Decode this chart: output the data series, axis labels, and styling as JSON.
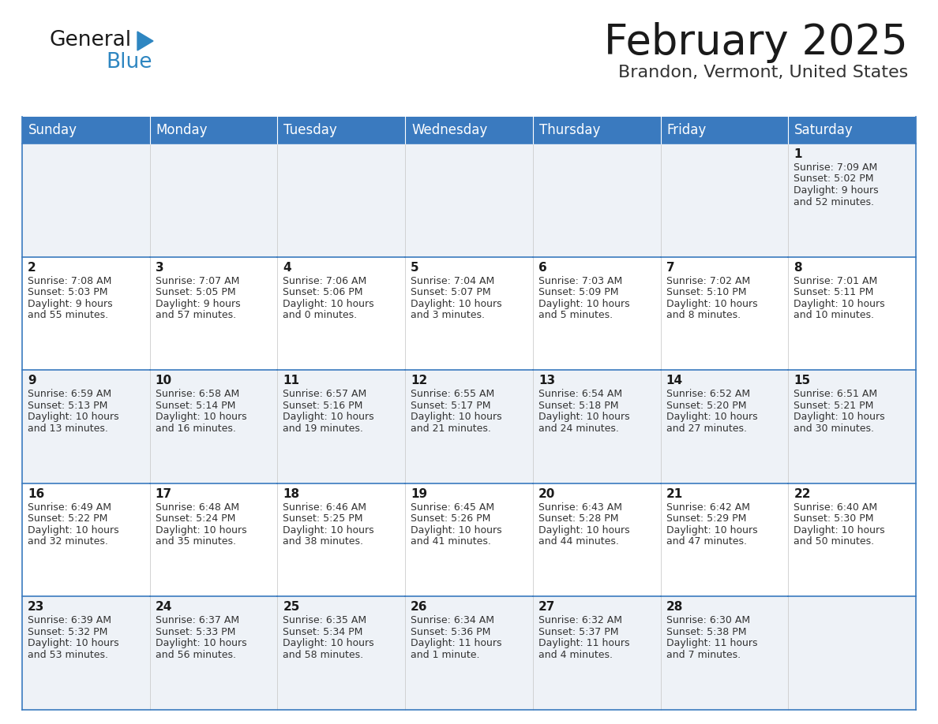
{
  "title": "February 2025",
  "subtitle": "Brandon, Vermont, United States",
  "header_color": "#3a7abf",
  "header_text_color": "#ffffff",
  "cell_bg_even": "#eef2f7",
  "cell_bg_odd": "#ffffff",
  "border_color": "#3a7abf",
  "border_light": "#cccccc",
  "days_of_week": [
    "Sunday",
    "Monday",
    "Tuesday",
    "Wednesday",
    "Thursday",
    "Friday",
    "Saturday"
  ],
  "calendar": [
    [
      null,
      null,
      null,
      null,
      null,
      null,
      {
        "day": "1",
        "sunrise": "7:09 AM",
        "sunset": "5:02 PM",
        "daylight1": "9 hours",
        "daylight2": "and 52 minutes."
      }
    ],
    [
      {
        "day": "2",
        "sunrise": "7:08 AM",
        "sunset": "5:03 PM",
        "daylight1": "9 hours",
        "daylight2": "and 55 minutes."
      },
      {
        "day": "3",
        "sunrise": "7:07 AM",
        "sunset": "5:05 PM",
        "daylight1": "9 hours",
        "daylight2": "and 57 minutes."
      },
      {
        "day": "4",
        "sunrise": "7:06 AM",
        "sunset": "5:06 PM",
        "daylight1": "10 hours",
        "daylight2": "and 0 minutes."
      },
      {
        "day": "5",
        "sunrise": "7:04 AM",
        "sunset": "5:07 PM",
        "daylight1": "10 hours",
        "daylight2": "and 3 minutes."
      },
      {
        "day": "6",
        "sunrise": "7:03 AM",
        "sunset": "5:09 PM",
        "daylight1": "10 hours",
        "daylight2": "and 5 minutes."
      },
      {
        "day": "7",
        "sunrise": "7:02 AM",
        "sunset": "5:10 PM",
        "daylight1": "10 hours",
        "daylight2": "and 8 minutes."
      },
      {
        "day": "8",
        "sunrise": "7:01 AM",
        "sunset": "5:11 PM",
        "daylight1": "10 hours",
        "daylight2": "and 10 minutes."
      }
    ],
    [
      {
        "day": "9",
        "sunrise": "6:59 AM",
        "sunset": "5:13 PM",
        "daylight1": "10 hours",
        "daylight2": "and 13 minutes."
      },
      {
        "day": "10",
        "sunrise": "6:58 AM",
        "sunset": "5:14 PM",
        "daylight1": "10 hours",
        "daylight2": "and 16 minutes."
      },
      {
        "day": "11",
        "sunrise": "6:57 AM",
        "sunset": "5:16 PM",
        "daylight1": "10 hours",
        "daylight2": "and 19 minutes."
      },
      {
        "day": "12",
        "sunrise": "6:55 AM",
        "sunset": "5:17 PM",
        "daylight1": "10 hours",
        "daylight2": "and 21 minutes."
      },
      {
        "day": "13",
        "sunrise": "6:54 AM",
        "sunset": "5:18 PM",
        "daylight1": "10 hours",
        "daylight2": "and 24 minutes."
      },
      {
        "day": "14",
        "sunrise": "6:52 AM",
        "sunset": "5:20 PM",
        "daylight1": "10 hours",
        "daylight2": "and 27 minutes."
      },
      {
        "day": "15",
        "sunrise": "6:51 AM",
        "sunset": "5:21 PM",
        "daylight1": "10 hours",
        "daylight2": "and 30 minutes."
      }
    ],
    [
      {
        "day": "16",
        "sunrise": "6:49 AM",
        "sunset": "5:22 PM",
        "daylight1": "10 hours",
        "daylight2": "and 32 minutes."
      },
      {
        "day": "17",
        "sunrise": "6:48 AM",
        "sunset": "5:24 PM",
        "daylight1": "10 hours",
        "daylight2": "and 35 minutes."
      },
      {
        "day": "18",
        "sunrise": "6:46 AM",
        "sunset": "5:25 PM",
        "daylight1": "10 hours",
        "daylight2": "and 38 minutes."
      },
      {
        "day": "19",
        "sunrise": "6:45 AM",
        "sunset": "5:26 PM",
        "daylight1": "10 hours",
        "daylight2": "and 41 minutes."
      },
      {
        "day": "20",
        "sunrise": "6:43 AM",
        "sunset": "5:28 PM",
        "daylight1": "10 hours",
        "daylight2": "and 44 minutes."
      },
      {
        "day": "21",
        "sunrise": "6:42 AM",
        "sunset": "5:29 PM",
        "daylight1": "10 hours",
        "daylight2": "and 47 minutes."
      },
      {
        "day": "22",
        "sunrise": "6:40 AM",
        "sunset": "5:30 PM",
        "daylight1": "10 hours",
        "daylight2": "and 50 minutes."
      }
    ],
    [
      {
        "day": "23",
        "sunrise": "6:39 AM",
        "sunset": "5:32 PM",
        "daylight1": "10 hours",
        "daylight2": "and 53 minutes."
      },
      {
        "day": "24",
        "sunrise": "6:37 AM",
        "sunset": "5:33 PM",
        "daylight1": "10 hours",
        "daylight2": "and 56 minutes."
      },
      {
        "day": "25",
        "sunrise": "6:35 AM",
        "sunset": "5:34 PM",
        "daylight1": "10 hours",
        "daylight2": "and 58 minutes."
      },
      {
        "day": "26",
        "sunrise": "6:34 AM",
        "sunset": "5:36 PM",
        "daylight1": "11 hours",
        "daylight2": "and 1 minute."
      },
      {
        "day": "27",
        "sunrise": "6:32 AM",
        "sunset": "5:37 PM",
        "daylight1": "11 hours",
        "daylight2": "and 4 minutes."
      },
      {
        "day": "28",
        "sunrise": "6:30 AM",
        "sunset": "5:38 PM",
        "daylight1": "11 hours",
        "daylight2": "and 7 minutes."
      },
      null
    ]
  ],
  "title_fontsize": 38,
  "subtitle_fontsize": 16,
  "dayname_fontsize": 12,
  "daynum_fontsize": 11,
  "info_fontsize": 9
}
